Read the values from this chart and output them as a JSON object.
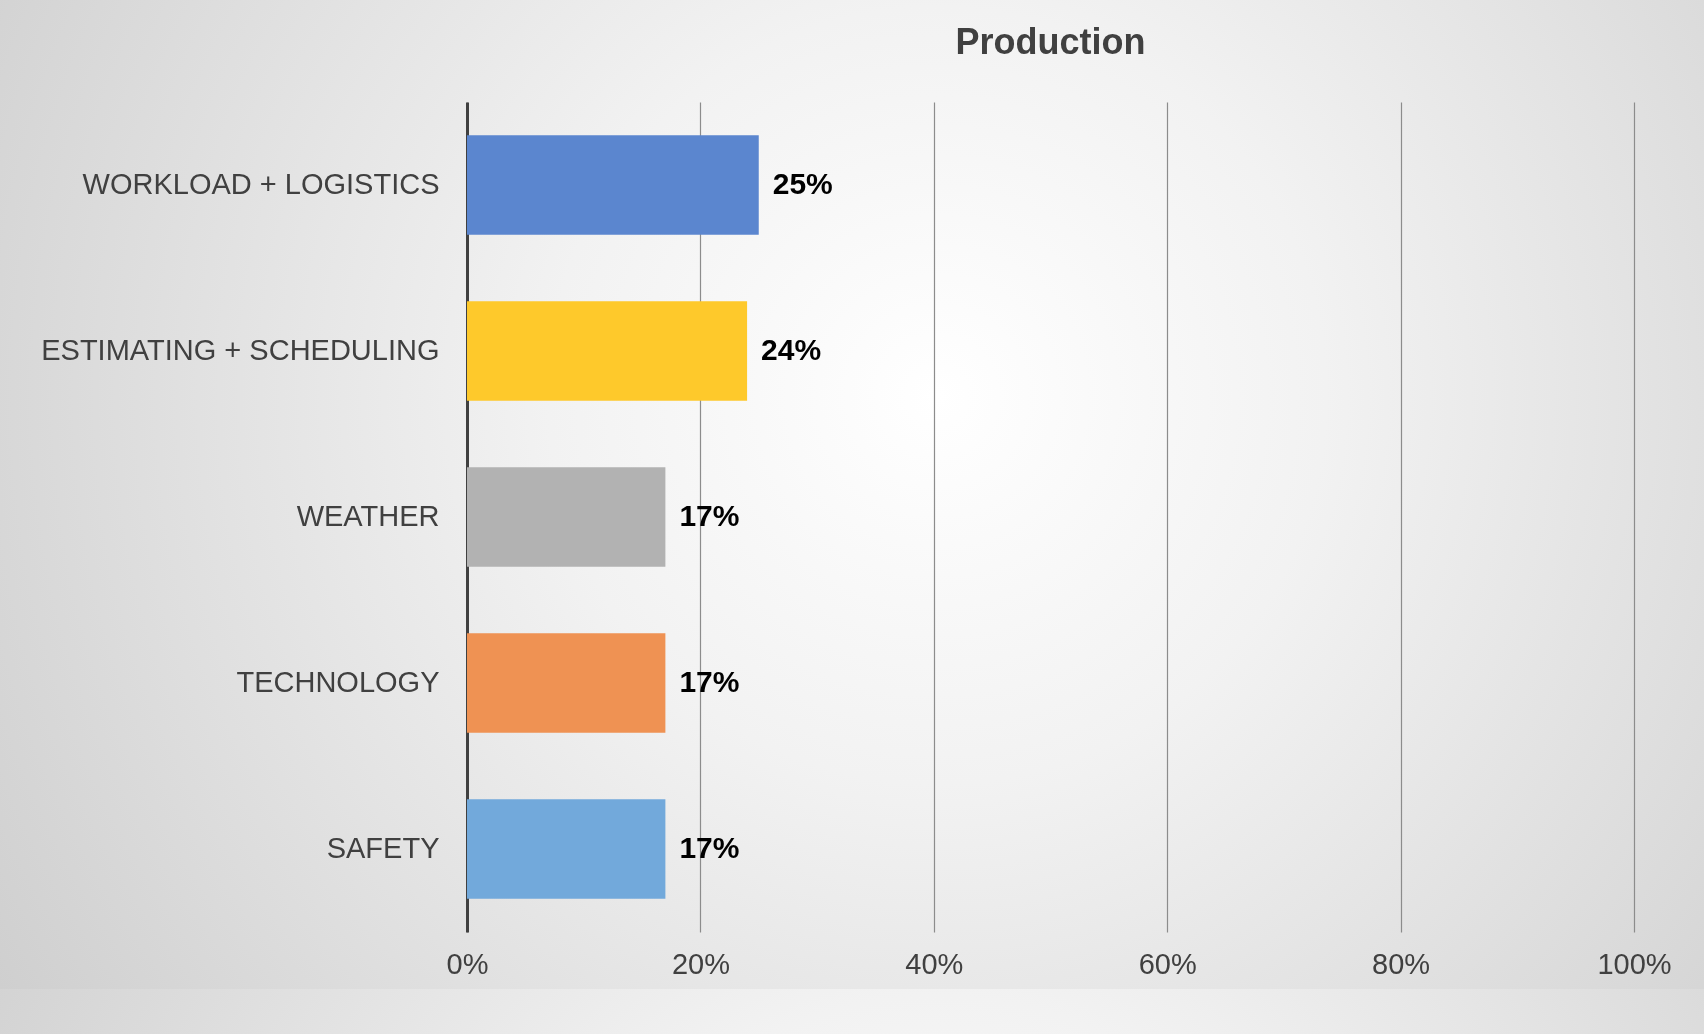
{
  "chart_data": {
    "type": "bar",
    "title": "Production",
    "orientation": "horizontal",
    "categories": [
      "WORKLOAD + LOGISTICS",
      "ESTIMATING + SCHEDULING",
      "WEATHER",
      "TECHNOLOGY",
      "SAFETY"
    ],
    "values": [
      25,
      24,
      17,
      17,
      17
    ],
    "colors": [
      "#5b86cf",
      "#fec92b",
      "#b2b2b2",
      "#ef9253",
      "#72a9db"
    ],
    "value_labels": [
      "25%",
      "24%",
      "17%",
      "17%",
      "17%"
    ],
    "xlim": [
      0,
      100
    ],
    "xticks": [
      {
        "value": 0,
        "label": "0%"
      },
      {
        "value": 20,
        "label": "20%"
      },
      {
        "value": 40,
        "label": "40%"
      },
      {
        "value": 60,
        "label": "60%"
      },
      {
        "value": 80,
        "label": "80%"
      },
      {
        "value": 100,
        "label": "100%"
      }
    ],
    "grid": "x"
  }
}
